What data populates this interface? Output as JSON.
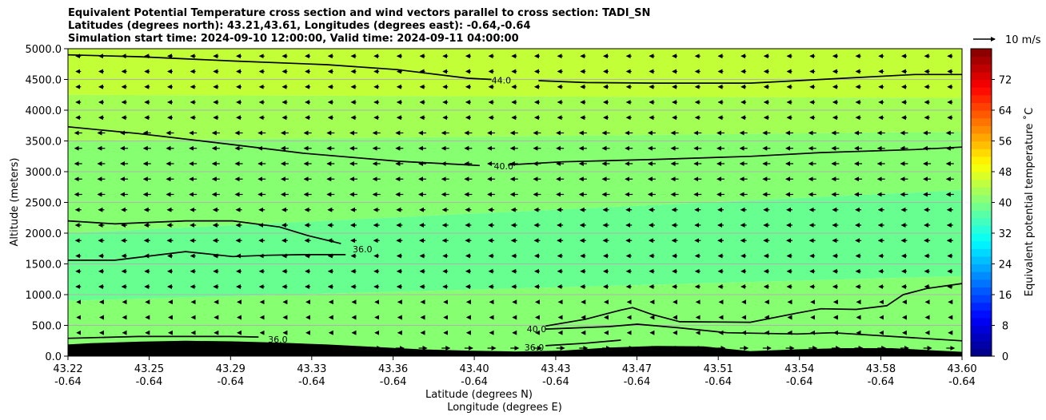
{
  "chart_data": {
    "type": "heatmap",
    "title_lines": [
      "Equivalent Potential Temperature cross section and wind vectors parallel to cross section: TADI_SN",
      "Latitudes (degrees north): 43.21,43.61, Longitudes (degrees east): -0.64,-0.64",
      "Simulation start time: 2024-09-10 12:00:00, Valid time: 2024-09-11 04:00:00"
    ],
    "xlabel_lines": [
      "Latitude (degrees N)",
      "Longitude (degrees E)"
    ],
    "ylabel": "Altitude (meters)",
    "xlim": [
      43.22,
      43.6
    ],
    "ylim": [
      0,
      5000
    ],
    "x_ticks": [
      {
        "lat": "43.22",
        "lon": "-0.64",
        "v": 43.22
      },
      {
        "lat": "43.25",
        "lon": "-0.64",
        "v": 43.2545
      },
      {
        "lat": "43.29",
        "lon": "-0.64",
        "v": 43.2891
      },
      {
        "lat": "43.33",
        "lon": "-0.64",
        "v": 43.3236
      },
      {
        "lat": "43.36",
        "lon": "-0.64",
        "v": 43.3582
      },
      {
        "lat": "43.40",
        "lon": "-0.64",
        "v": 43.3927
      },
      {
        "lat": "43.43",
        "lon": "-0.64",
        "v": 43.4273
      },
      {
        "lat": "43.47",
        "lon": "-0.64",
        "v": 43.4618
      },
      {
        "lat": "43.51",
        "lon": "-0.64",
        "v": 43.4964
      },
      {
        "lat": "43.54",
        "lon": "-0.64",
        "v": 43.5309
      },
      {
        "lat": "43.58",
        "lon": "-0.64",
        "v": 43.5655
      },
      {
        "lat": "43.60",
        "lon": "-0.64",
        "v": 43.6
      }
    ],
    "y_ticks": [
      "0.0",
      "500.0",
      "1000.0",
      "1500.0",
      "2000.0",
      "2500.0",
      "3000.0",
      "3500.0",
      "4000.0",
      "4500.0",
      "5000.0"
    ],
    "grid": "horizontal",
    "colorbar": {
      "label": "Equivalent potential temperature ˚C",
      "min": 0,
      "max": 80,
      "ticks": [
        "0",
        "8",
        "16",
        "24",
        "32",
        "40",
        "48",
        "56",
        "64",
        "72"
      ],
      "colormap": "jet"
    },
    "wind_reference": {
      "label": "10 m/s"
    },
    "contours": [
      {
        "level": 44,
        "label": "44.0",
        "label_at": [
          43.4,
          4490
        ],
        "points": [
          [
            43.22,
            4900
          ],
          [
            43.25,
            4870
          ],
          [
            43.29,
            4800
          ],
          [
            43.33,
            4740
          ],
          [
            43.36,
            4660
          ],
          [
            43.39,
            4520
          ],
          [
            43.4,
            4500
          ]
        ]
      },
      {
        "level": 44,
        "label": "",
        "points": [
          [
            43.42,
            4480
          ],
          [
            43.44,
            4450
          ],
          [
            43.47,
            4440
          ],
          [
            43.51,
            4440
          ],
          [
            43.54,
            4500
          ],
          [
            43.58,
            4580
          ],
          [
            43.6,
            4580
          ]
        ]
      },
      {
        "level": 40,
        "label": "40.0",
        "label_at": [
          43.401,
          3090
        ],
        "points": [
          [
            43.22,
            3730
          ],
          [
            43.25,
            3620
          ],
          [
            43.29,
            3440
          ],
          [
            43.32,
            3300
          ],
          [
            43.36,
            3170
          ],
          [
            43.39,
            3110
          ],
          [
            43.395,
            3100
          ]
        ]
      },
      {
        "level": 40,
        "label": "",
        "points": [
          [
            43.407,
            3110
          ],
          [
            43.43,
            3160
          ],
          [
            43.47,
            3200
          ],
          [
            43.51,
            3250
          ],
          [
            43.54,
            3310
          ],
          [
            43.58,
            3360
          ],
          [
            43.6,
            3400
          ]
        ]
      },
      {
        "level": 36,
        "label": "36.0",
        "label_at": [
          43.341,
          1740
        ],
        "points": [
          [
            43.22,
            2200
          ],
          [
            43.24,
            2150
          ],
          [
            43.27,
            2200
          ],
          [
            43.29,
            2200
          ],
          [
            43.31,
            2100
          ],
          [
            43.322,
            1960
          ],
          [
            43.336,
            1830
          ]
        ]
      },
      {
        "level": 36,
        "label": "",
        "points": [
          [
            43.22,
            1560
          ],
          [
            43.24,
            1560
          ],
          [
            43.27,
            1700
          ],
          [
            43.29,
            1620
          ],
          [
            43.305,
            1640
          ],
          [
            43.32,
            1650
          ],
          [
            43.338,
            1650
          ]
        ]
      },
      {
        "level": 36,
        "label": "36.0",
        "label_at": [
          43.305,
          270
        ],
        "points": [
          [
            43.22,
            290
          ],
          [
            43.25,
            320
          ],
          [
            43.29,
            320
          ],
          [
            43.301,
            310
          ]
        ]
      },
      {
        "level": 40,
        "label": "40.0",
        "label_at": [
          43.415,
          440
        ],
        "points": [
          [
            43.423,
            490
          ],
          [
            43.44,
            600
          ],
          [
            43.455,
            750
          ],
          [
            43.46,
            790
          ],
          [
            43.468,
            680
          ],
          [
            43.48,
            560
          ],
          [
            43.51,
            550
          ],
          [
            43.53,
            700
          ],
          [
            43.54,
            770
          ],
          [
            43.555,
            760
          ],
          [
            43.568,
            820
          ],
          [
            43.575,
            1000
          ],
          [
            43.585,
            1100
          ],
          [
            43.6,
            1180
          ]
        ]
      },
      {
        "level": 40,
        "label": "",
        "points": [
          [
            43.423,
            440
          ],
          [
            43.45,
            480
          ],
          [
            43.462,
            520
          ],
          [
            43.48,
            460
          ],
          [
            43.5,
            380
          ],
          [
            43.53,
            360
          ],
          [
            43.545,
            380
          ],
          [
            43.6,
            250
          ]
        ]
      },
      {
        "level": 36,
        "label": "36.0",
        "label_at": [
          43.414,
          140
        ],
        "points": [
          [
            43.423,
            170
          ],
          [
            43.44,
            210
          ],
          [
            43.455,
            260
          ]
        ]
      }
    ],
    "terrain": [
      [
        43.22,
        190
      ],
      [
        43.23,
        210
      ],
      [
        43.25,
        235
      ],
      [
        43.27,
        250
      ],
      [
        43.29,
        240
      ],
      [
        43.31,
        220
      ],
      [
        43.33,
        190
      ],
      [
        43.35,
        150
      ],
      [
        43.37,
        110
      ],
      [
        43.39,
        90
      ],
      [
        43.41,
        75
      ],
      [
        43.43,
        90
      ],
      [
        43.45,
        140
      ],
      [
        43.47,
        165
      ],
      [
        43.49,
        160
      ],
      [
        43.51,
        80
      ],
      [
        43.53,
        110
      ],
      [
        43.55,
        130
      ],
      [
        43.57,
        130
      ],
      [
        43.59,
        90
      ],
      [
        43.6,
        70
      ]
    ],
    "fill_bands": [
      {
        "top_left": 5000,
        "top_right": 5000,
        "bottom_left": 4250,
        "bottom_right": 4200,
        "color": "#c2ff36"
      },
      {
        "top_left": 4250,
        "top_right": 4200,
        "bottom_left": 3500,
        "bottom_right": 3650,
        "color": "#a3ff54"
      },
      {
        "top_left": 3500,
        "top_right": 3650,
        "bottom_left": 2000,
        "bottom_right": 2700,
        "color": "#86ff70"
      },
      {
        "top_left": 2000,
        "top_right": 2700,
        "bottom_left": 900,
        "bottom_right": 1300,
        "color": "#66ff90"
      },
      {
        "top_left": 900,
        "top_right": 1300,
        "bottom_left": 0,
        "bottom_right": 0,
        "color": "#86ff70"
      }
    ]
  }
}
